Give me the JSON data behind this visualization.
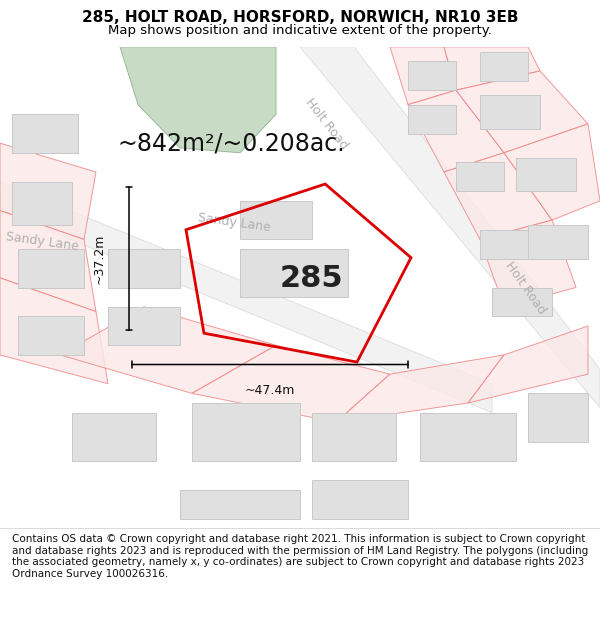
{
  "title": "285, HOLT ROAD, HORSFORD, NORWICH, NR10 3EB",
  "subtitle": "Map shows position and indicative extent of the property.",
  "area_text": "~842m²/~0.208ac.",
  "label_285": "285",
  "dim_width": "~47.4m",
  "dim_height": "~37.2m",
  "footer": "Contains OS data © Crown copyright and database right 2021. This information is subject to Crown copyright and database rights 2023 and is reproduced with the permission of HM Land Registry. The polygons (including the associated geometry, namely x, y co-ordinates) are subject to Crown copyright and database rights 2023 Ordnance Survey 100026316.",
  "map_bg": "#ffffff",
  "green_color": "#c8dcc5",
  "red_color": "#dd0000",
  "building_fill": "#e0e0e0",
  "building_edge": "#c8c8c8",
  "road_fill": "#f2f2f2",
  "pink_fill": "#fce8e8",
  "pink_edge": "#f08080",
  "road_label_color": "#b0b0b0",
  "title_fontsize": 11,
  "subtitle_fontsize": 9.5,
  "area_fontsize": 17,
  "label_fontsize": 22,
  "road_label_fontsize": 9,
  "footer_fontsize": 7.5,
  "dim_fontsize": 9
}
